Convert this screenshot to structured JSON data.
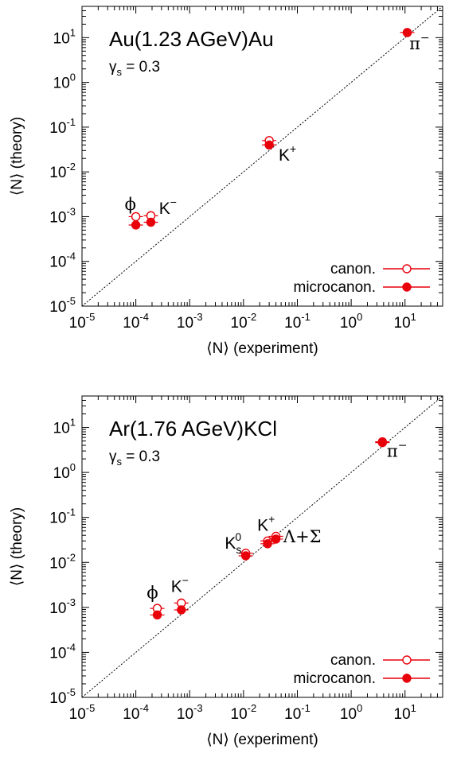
{
  "colors": {
    "data": "#e8000b",
    "diagonal": "#000000",
    "axis": "#000000"
  },
  "chart_data": [
    {
      "type": "scatter",
      "scale": "log-log",
      "title": "Au(1.23 AGeV)Au",
      "subtitle_prefix": "γ",
      "subtitle_sub": "s",
      "subtitle_value": " = 0.3",
      "xlabel": "⟨N⟩ (experiment)",
      "ylabel": "⟨N⟩ (theory)",
      "xlim": [
        1e-05,
        50
      ],
      "ylim": [
        1e-05,
        50
      ],
      "xticks": [
        {
          "value": 1e-05,
          "base": "10",
          "exp": "-5"
        },
        {
          "value": 0.0001,
          "base": "10",
          "exp": "-4"
        },
        {
          "value": 0.001,
          "base": "10",
          "exp": "-3"
        },
        {
          "value": 0.01,
          "base": "10",
          "exp": "-2"
        },
        {
          "value": 0.1,
          "base": "10",
          "exp": "-1"
        },
        {
          "value": 1,
          "base": "10",
          "exp": "0"
        },
        {
          "value": 10,
          "base": "10",
          "exp": "1"
        }
      ],
      "yticks": [
        {
          "value": 1e-05,
          "base": "10",
          "exp": "-5"
        },
        {
          "value": 0.0001,
          "base": "10",
          "exp": "-4"
        },
        {
          "value": 0.001,
          "base": "10",
          "exp": "-3"
        },
        {
          "value": 0.01,
          "base": "10",
          "exp": "-2"
        },
        {
          "value": 0.1,
          "base": "10",
          "exp": "-1"
        },
        {
          "value": 1,
          "base": "10",
          "exp": "0"
        },
        {
          "value": 10,
          "base": "10",
          "exp": "1"
        }
      ],
      "diagonal": true,
      "legend_position": "bottom-right",
      "series": [
        {
          "name": "canon.",
          "marker": "open-circle",
          "points": [
            {
              "x": 0.0001,
              "y": 0.001
            },
            {
              "x": 0.00019,
              "y": 0.00105
            },
            {
              "x": 0.03,
              "y": 0.05
            },
            {
              "x": 11,
              "y": 13
            }
          ]
        },
        {
          "name": "microcanon.",
          "marker": "filled-circle",
          "points": [
            {
              "x": 0.0001,
              "y": 0.00065
            },
            {
              "x": 0.00019,
              "y": 0.00075
            },
            {
              "x": 0.03,
              "y": 0.04
            },
            {
              "x": 11,
              "y": 13
            }
          ]
        }
      ],
      "labels": [
        {
          "main": "ϕ",
          "sub": "",
          "sup": "",
          "x": 6.2e-05,
          "y": 0.0014
        },
        {
          "main": "K",
          "sub": "",
          "sup": "−",
          "x": 0.00027,
          "y": 0.00115
        },
        {
          "main": "K",
          "sub": "",
          "sup": "+",
          "x": 0.045,
          "y": 0.018
        },
        {
          "main": "π",
          "sub": "",
          "sup": "−",
          "x": 12,
          "y": 5.5
        }
      ]
    },
    {
      "type": "scatter",
      "scale": "log-log",
      "title": "Ar(1.76 AGeV)KCl",
      "subtitle_prefix": "γ",
      "subtitle_sub": "s",
      "subtitle_value": " = 0.3",
      "xlabel": "⟨N⟩ (experiment)",
      "ylabel": "⟨N⟩ (theory)",
      "xlim": [
        1e-05,
        50
      ],
      "ylim": [
        1e-05,
        50
      ],
      "xticks": [
        {
          "value": 1e-05,
          "base": "10",
          "exp": "-5"
        },
        {
          "value": 0.0001,
          "base": "10",
          "exp": "-4"
        },
        {
          "value": 0.001,
          "base": "10",
          "exp": "-3"
        },
        {
          "value": 0.01,
          "base": "10",
          "exp": "-2"
        },
        {
          "value": 0.1,
          "base": "10",
          "exp": "-1"
        },
        {
          "value": 1,
          "base": "10",
          "exp": "0"
        },
        {
          "value": 10,
          "base": "10",
          "exp": "1"
        }
      ],
      "yticks": [
        {
          "value": 1e-05,
          "base": "10",
          "exp": "-5"
        },
        {
          "value": 0.0001,
          "base": "10",
          "exp": "-4"
        },
        {
          "value": 0.001,
          "base": "10",
          "exp": "-3"
        },
        {
          "value": 0.01,
          "base": "10",
          "exp": "-2"
        },
        {
          "value": 0.1,
          "base": "10",
          "exp": "-1"
        },
        {
          "value": 1,
          "base": "10",
          "exp": "0"
        },
        {
          "value": 10,
          "base": "10",
          "exp": "1"
        }
      ],
      "diagonal": true,
      "legend_position": "bottom-right",
      "series": [
        {
          "name": "canon.",
          "marker": "open-circle",
          "points": [
            {
              "x": 0.00025,
              "y": 0.00095
            },
            {
              "x": 0.0007,
              "y": 0.00125
            },
            {
              "x": 0.011,
              "y": 0.016
            },
            {
              "x": 0.028,
              "y": 0.03
            },
            {
              "x": 0.04,
              "y": 0.038
            },
            {
              "x": 3.8,
              "y": 4.6
            }
          ]
        },
        {
          "name": "microcanon.",
          "marker": "filled-circle",
          "points": [
            {
              "x": 0.00025,
              "y": 0.00068
            },
            {
              "x": 0.0007,
              "y": 0.00088
            },
            {
              "x": 0.011,
              "y": 0.014
            },
            {
              "x": 0.028,
              "y": 0.026
            },
            {
              "x": 0.04,
              "y": 0.033
            },
            {
              "x": 3.8,
              "y": 4.8
            }
          ]
        }
      ],
      "labels": [
        {
          "main": "ϕ",
          "sub": "",
          "sup": "",
          "x": 0.00016,
          "y": 0.0016
        },
        {
          "main": "K",
          "sub": "",
          "sup": "−",
          "x": 0.00045,
          "y": 0.0022
        },
        {
          "main": "K",
          "sub": "s",
          "sup": "0",
          "x": 0.0045,
          "y": 0.02
        },
        {
          "main": "K",
          "sub": "",
          "sup": "+",
          "x": 0.018,
          "y": 0.05
        },
        {
          "main": "Λ+Σ",
          "sub": "",
          "sup": "",
          "x": 0.055,
          "y": 0.028
        },
        {
          "main": "π",
          "sub": "",
          "sup": "−",
          "x": 4.6,
          "y": 2.2
        }
      ]
    }
  ]
}
